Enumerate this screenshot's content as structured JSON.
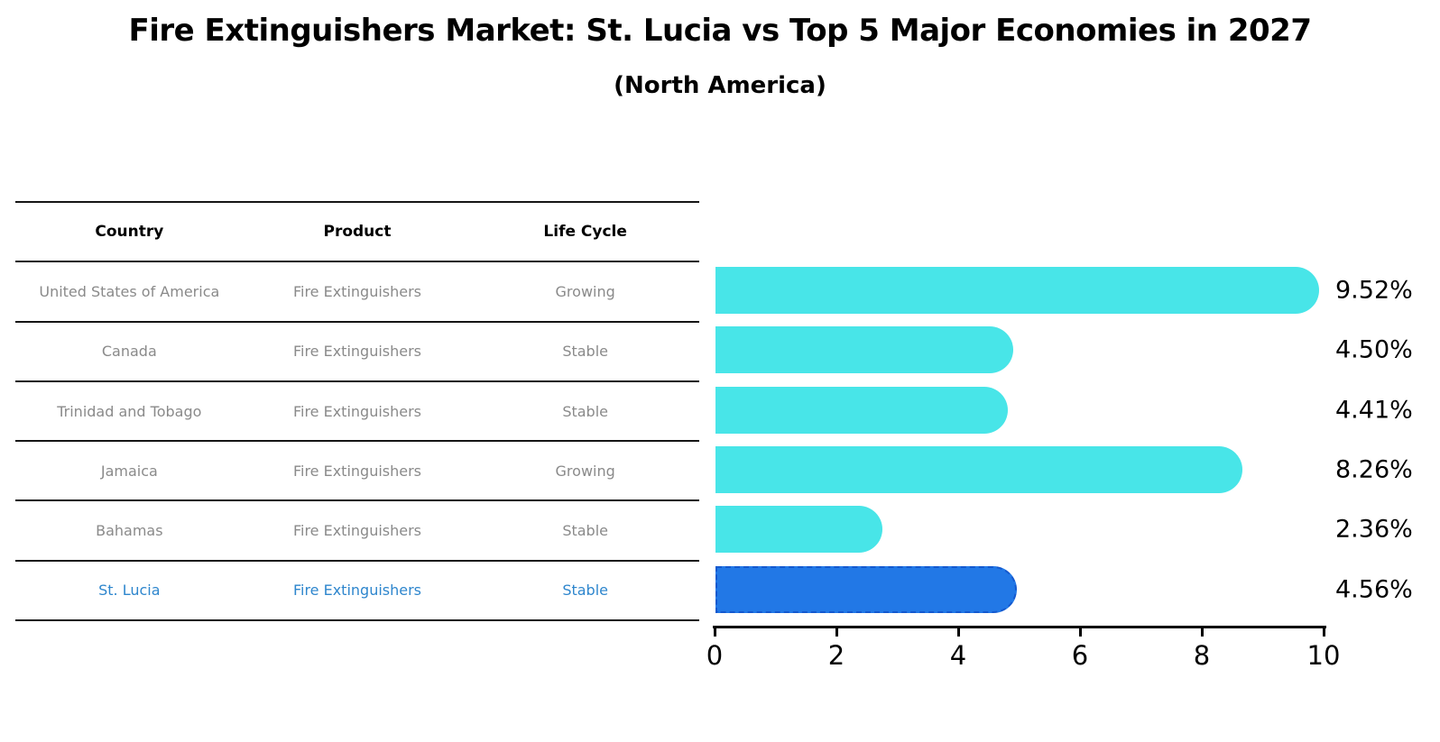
{
  "title": "Fire Extinguishers Market: St. Lucia vs Top 5 Major Economies in 2027",
  "subtitle": "(North America)",
  "table": {
    "headers": [
      "Country",
      "Product",
      "Life Cycle"
    ]
  },
  "chart_data": {
    "type": "bar",
    "orientation": "horizontal",
    "title": "Fire Extinguishers Market: St. Lucia vs Top 5 Major Economies in 2027",
    "subtitle": "(North America)",
    "categories": [
      "United States of America",
      "Canada",
      "Trinidad and Tobago",
      "Jamaica",
      "Bahamas",
      "St. Lucia"
    ],
    "values": [
      9.52,
      4.5,
      4.41,
      8.26,
      2.36,
      4.56
    ],
    "value_labels": [
      "9.52%",
      "4.50%",
      "4.41%",
      "8.26%",
      "2.36%",
      "4.56%"
    ],
    "xlim": [
      0,
      10
    ],
    "x_tick_labels": [
      "0",
      "2",
      "4",
      "6",
      "8",
      "10"
    ],
    "grid": false,
    "legend": false,
    "highlight_index": 5,
    "rows": [
      {
        "country": "United States of America",
        "product": "Fire Extinguishers",
        "life_cycle": "Growing",
        "value": 9.52,
        "label": "9.52%",
        "highlight": false
      },
      {
        "country": "Canada",
        "product": "Fire Extinguishers",
        "life_cycle": "Stable",
        "value": 4.5,
        "label": "4.50%",
        "highlight": false
      },
      {
        "country": "Trinidad and Tobago",
        "product": "Fire Extinguishers",
        "life_cycle": "Stable",
        "value": 4.41,
        "label": "4.41%",
        "highlight": false
      },
      {
        "country": "Jamaica",
        "product": "Fire Extinguishers",
        "life_cycle": "Growing",
        "value": 8.26,
        "label": "8.26%",
        "highlight": false
      },
      {
        "country": "Bahamas",
        "product": "Fire Extinguishers",
        "life_cycle": "Stable",
        "value": 2.36,
        "label": "2.36%",
        "highlight": false
      },
      {
        "country": "St. Lucia",
        "product": "Fire Extinguishers",
        "life_cycle": "Stable",
        "value": 4.56,
        "label": "4.56%",
        "highlight": true
      }
    ]
  },
  "colors": {
    "bar": "#48e5e8",
    "highlight_bar": "#2278e6",
    "highlight_bar_border": "#1459cf",
    "row_text": "#8a8a8a",
    "highlight_row_text": "#2e86cd",
    "axis": "#000000",
    "table_line": "#151515"
  }
}
